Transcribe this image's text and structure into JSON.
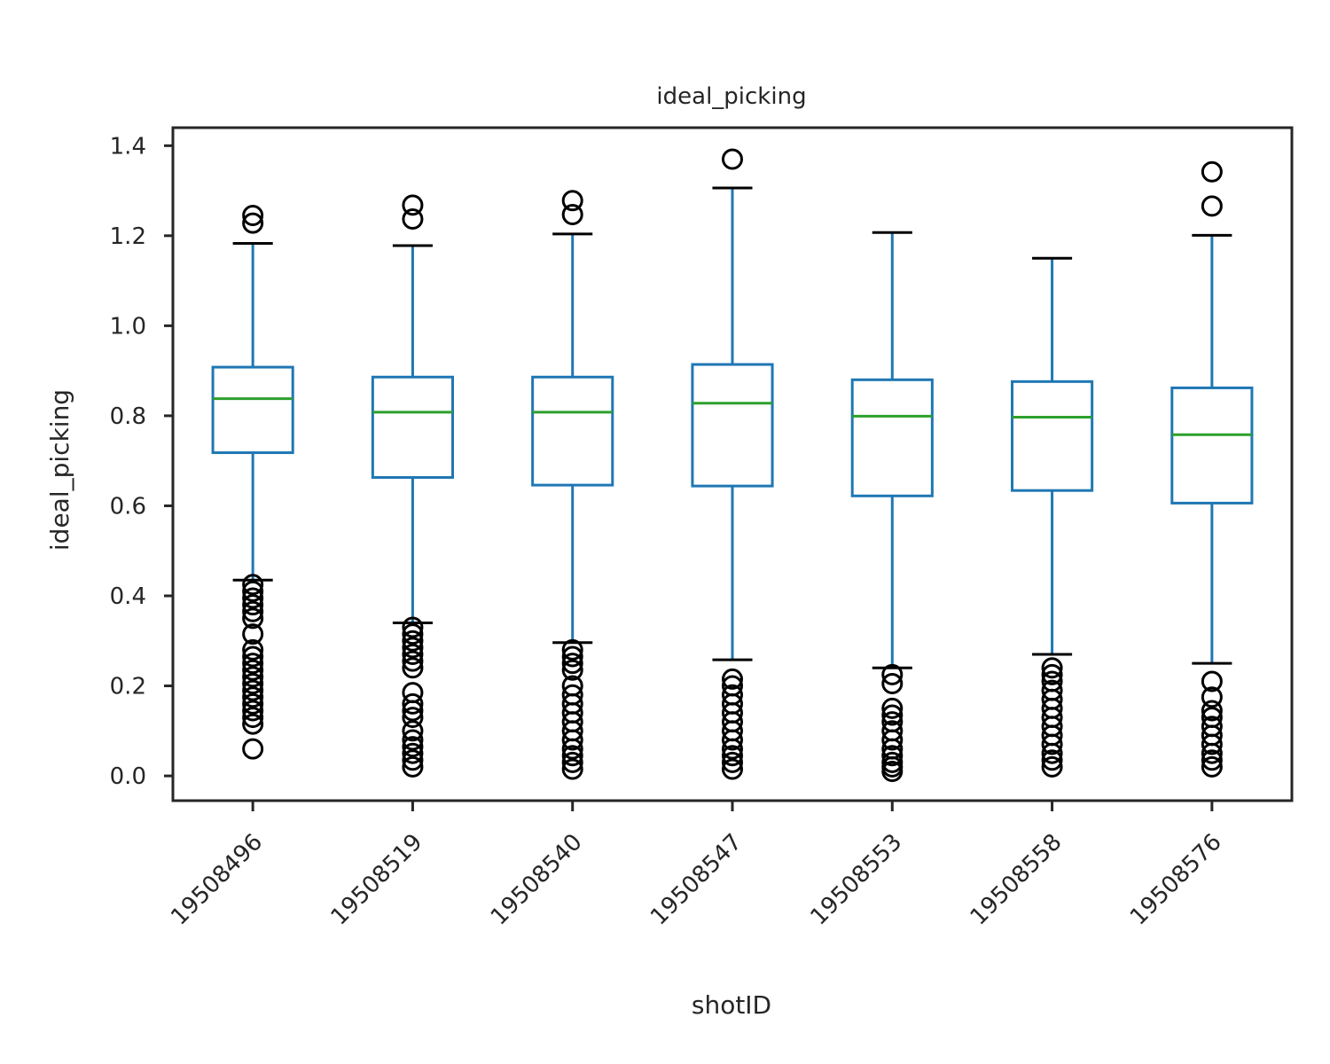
{
  "chart_data": {
    "type": "box",
    "title": "ideal_picking",
    "xlabel": "shotID",
    "ylabel": "ideal_picking",
    "ylim": [
      -0.055,
      1.44
    ],
    "yticks": [
      0.0,
      0.2,
      0.4,
      0.6,
      0.8,
      1.0,
      1.2,
      1.4
    ],
    "ytick_labels": [
      "0.0",
      "0.2",
      "0.4",
      "0.6",
      "0.8",
      "1.0",
      "1.2",
      "1.4"
    ],
    "grid": false,
    "legend": "none",
    "colors": {
      "box": "#1f77b4",
      "median": "#2ca02c",
      "outlier": "#000000",
      "axes": "#262626"
    },
    "categories": [
      "19508496",
      "19508519",
      "19508540",
      "19508547",
      "19508553",
      "19508558",
      "19508576"
    ],
    "boxes": [
      {
        "category": "19508496",
        "whisker_low": 0.435,
        "q1": 0.718,
        "median": 0.838,
        "q3": 0.908,
        "whisker_high": 1.183,
        "outliers": [
          1.245,
          1.228,
          0.425,
          0.41,
          0.395,
          0.38,
          0.365,
          0.35,
          0.315,
          0.28,
          0.265,
          0.25,
          0.235,
          0.22,
          0.205,
          0.19,
          0.175,
          0.16,
          0.145,
          0.13,
          0.115,
          0.06
        ]
      },
      {
        "category": "19508519",
        "whisker_low": 0.34,
        "q1": 0.663,
        "median": 0.808,
        "q3": 0.886,
        "whisker_high": 1.178,
        "outliers": [
          1.268,
          1.237,
          0.33,
          0.315,
          0.3,
          0.285,
          0.27,
          0.255,
          0.24,
          0.185,
          0.16,
          0.145,
          0.13,
          0.1,
          0.08,
          0.065,
          0.05,
          0.035,
          0.02
        ]
      },
      {
        "category": "19508540",
        "whisker_low": 0.296,
        "q1": 0.646,
        "median": 0.808,
        "q3": 0.886,
        "whisker_high": 1.204,
        "outliers": [
          1.278,
          1.247,
          0.28,
          0.265,
          0.25,
          0.235,
          0.2,
          0.18,
          0.16,
          0.14,
          0.12,
          0.1,
          0.08,
          0.06,
          0.045,
          0.03,
          0.015
        ]
      },
      {
        "category": "19508547",
        "whisker_low": 0.258,
        "q1": 0.644,
        "median": 0.828,
        "q3": 0.914,
        "whisker_high": 1.306,
        "outliers": [
          1.37,
          0.215,
          0.2,
          0.18,
          0.16,
          0.14,
          0.12,
          0.1,
          0.08,
          0.06,
          0.045,
          0.03,
          0.015
        ]
      },
      {
        "category": "19508553",
        "whisker_low": 0.24,
        "q1": 0.622,
        "median": 0.799,
        "q3": 0.88,
        "whisker_high": 1.207,
        "outliers": [
          0.225,
          0.205,
          0.15,
          0.135,
          0.12,
          0.1,
          0.08,
          0.06,
          0.045,
          0.03,
          0.02,
          0.01
        ]
      },
      {
        "category": "19508558",
        "whisker_low": 0.27,
        "q1": 0.634,
        "median": 0.797,
        "q3": 0.876,
        "whisker_high": 1.15,
        "outliers": [
          0.24,
          0.225,
          0.21,
          0.19,
          0.17,
          0.15,
          0.13,
          0.11,
          0.09,
          0.07,
          0.05,
          0.035,
          0.02
        ]
      },
      {
        "category": "19508576",
        "whisker_low": 0.25,
        "q1": 0.606,
        "median": 0.758,
        "q3": 0.862,
        "whisker_high": 1.201,
        "outliers": [
          1.342,
          1.266,
          0.21,
          0.175,
          0.145,
          0.13,
          0.11,
          0.09,
          0.07,
          0.05,
          0.035,
          0.02
        ]
      }
    ]
  }
}
